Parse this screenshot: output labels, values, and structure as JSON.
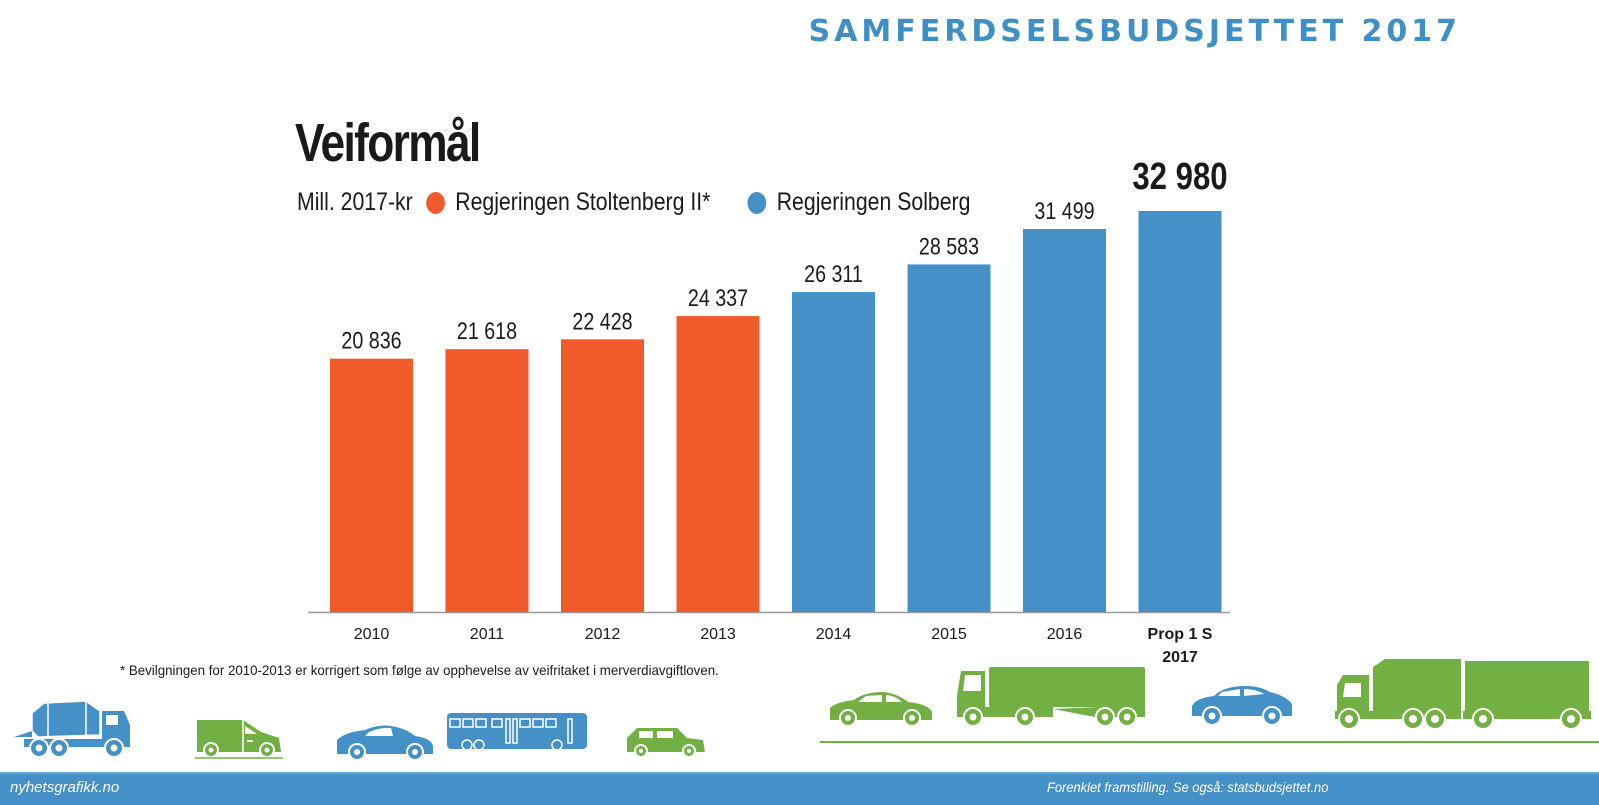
{
  "header": {
    "brand_title": "SAMFERDSELSBUDSJETTET 2017"
  },
  "chart_data": {
    "type": "bar",
    "title": "Veiformål",
    "unit_label": "Mill. 2017-kr",
    "categories": [
      "2010",
      "2011",
      "2012",
      "2013",
      "2014",
      "2015",
      "2016",
      "Prop 1 S 2017"
    ],
    "category_lines": [
      [
        "2010"
      ],
      [
        "2011"
      ],
      [
        "2012"
      ],
      [
        "2013"
      ],
      [
        "2014"
      ],
      [
        "2015"
      ],
      [
        "2016"
      ],
      [
        "Prop 1 S",
        "2017"
      ]
    ],
    "values": [
      20836,
      21618,
      22428,
      24337,
      26311,
      28583,
      31499,
      32980
    ],
    "value_labels": [
      "20 836",
      "21 618",
      "22 428",
      "24 337",
      "26 311",
      "28 583",
      "31 499",
      "32 980"
    ],
    "series_of_bar": [
      "Regjeringen Stoltenberg II*",
      "Regjeringen Stoltenberg II*",
      "Regjeringen Stoltenberg II*",
      "Regjeringen Stoltenberg II*",
      "Regjeringen Solberg",
      "Regjeringen Solberg",
      "Regjeringen Solberg",
      "Regjeringen Solberg"
    ],
    "highlighted_index": 7,
    "legend": [
      {
        "name": "Regjeringen Stoltenberg II*",
        "color": "#f15a2b"
      },
      {
        "name": "Regjeringen Solberg",
        "color": "#4590c7"
      }
    ],
    "legend_position": "top-left",
    "xlabel": "",
    "ylabel": "Mill. 2017-kr",
    "ylim": [
      0,
      34000
    ],
    "grid": false
  },
  "footnote": "* Bevilgningen  for 2010-2013 er korrigert som følge av opphevelse av veifritaket i merverdiavgiftloven.",
  "footer": {
    "left": "nyhetsgrafikk.no",
    "right": "Forenklet framstilling. Se også: statsbudsjettet.no"
  },
  "colors": {
    "orange": "#f15a2b",
    "blue": "#4590c7",
    "green": "#72b043",
    "text": "#1a1a1a"
  },
  "vehicles": [
    "cement-truck-icon",
    "van-icon",
    "sedan-icon",
    "bus-icon",
    "suv-icon",
    "car-icon",
    "semi-truck-icon",
    "crossover-icon",
    "truck-trailer-icon"
  ]
}
